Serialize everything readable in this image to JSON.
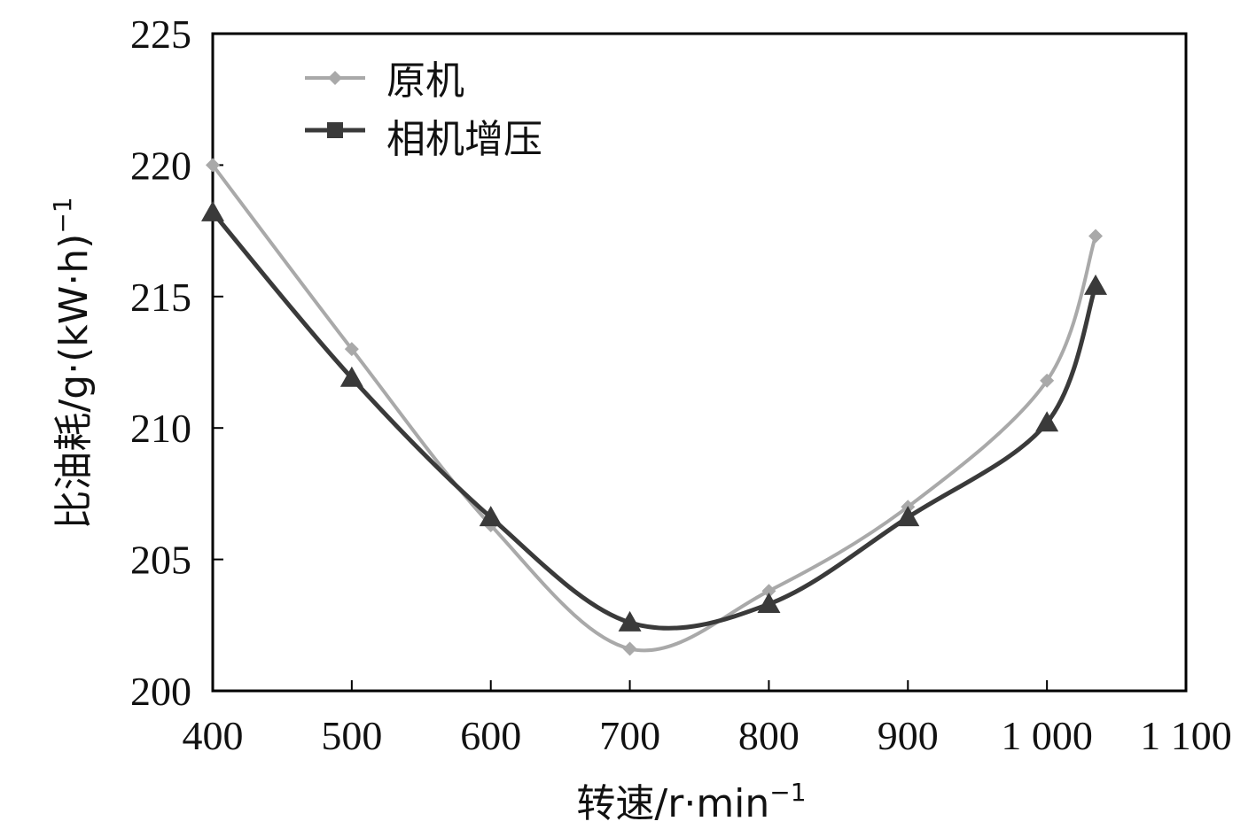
{
  "chart_data": {
    "type": "line",
    "xlabel": "转速/r·min",
    "xlabel_sup": "−1",
    "ylabel": "比油耗/g·(kW·h)",
    "ylabel_sup": "−1",
    "xlim": [
      400,
      1100
    ],
    "ylim": [
      200,
      225
    ],
    "x_ticks": [
      400,
      500,
      600,
      700,
      800,
      900,
      1000,
      1100
    ],
    "x_tick_labels": [
      "400",
      "500",
      "600",
      "700",
      "800",
      "900",
      "1 000",
      "1 100"
    ],
    "y_ticks": [
      200,
      205,
      210,
      215,
      220,
      225
    ],
    "y_tick_labels": [
      "200",
      "205",
      "210",
      "215",
      "220",
      "225"
    ],
    "grid": false,
    "legend_position": "top-left",
    "series": [
      {
        "name": "原机",
        "color": "#a9a9a9",
        "marker": "diamond",
        "x": [
          400,
          500,
          600,
          700,
          800,
          900,
          1000,
          1035
        ],
        "y": [
          220.0,
          213.0,
          206.3,
          201.6,
          203.8,
          207.0,
          211.8,
          217.3
        ]
      },
      {
        "name": "相机增压",
        "color": "#3a3a3a",
        "marker": "triangle",
        "legend_marker": "square",
        "x": [
          400,
          500,
          600,
          700,
          800,
          900,
          1000,
          1035
        ],
        "y": [
          218.2,
          211.9,
          206.6,
          202.6,
          203.3,
          206.6,
          210.2,
          215.4
        ]
      }
    ]
  }
}
